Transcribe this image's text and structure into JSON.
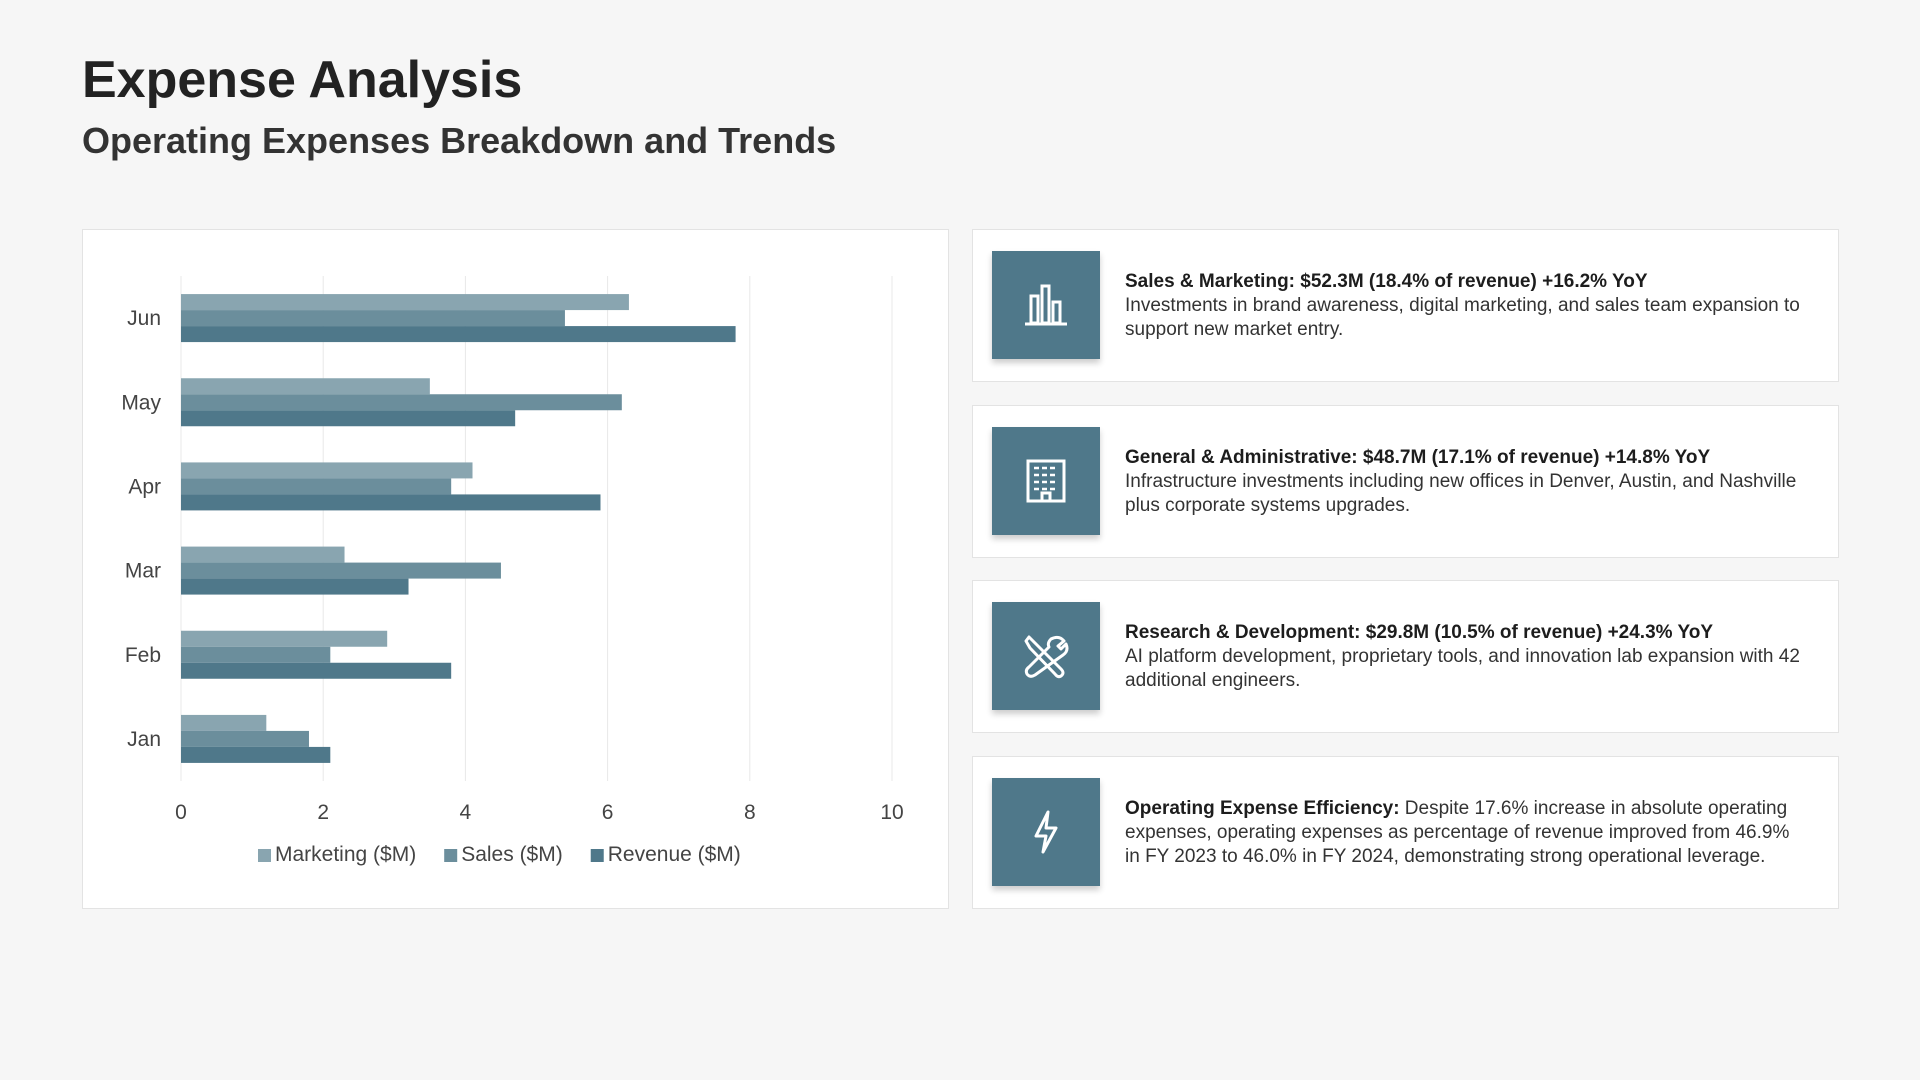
{
  "header": {
    "title": "Expense Analysis",
    "subtitle": "Operating Expenses Breakdown and Trends"
  },
  "chart_data": {
    "type": "bar",
    "orientation": "horizontal",
    "categories": [
      "Jan",
      "Feb",
      "Mar",
      "Apr",
      "May",
      "Jun"
    ],
    "series": [
      {
        "name": "Marketing ($M)",
        "color": "#89a5b0",
        "values": [
          1.2,
          2.9,
          2.3,
          4.1,
          3.5,
          6.3
        ]
      },
      {
        "name": "Sales ($M)",
        "color": "#6b8e9c",
        "values": [
          1.8,
          2.1,
          4.5,
          3.8,
          6.2,
          5.4
        ]
      },
      {
        "name": "Revenue ($M)",
        "color": "#4f788a",
        "values": [
          2.1,
          3.8,
          3.2,
          5.9,
          4.7,
          7.8
        ]
      }
    ],
    "xlim": [
      0,
      10
    ],
    "xticks": [
      "0",
      "2",
      "4",
      "6",
      "8",
      "10"
    ],
    "grid": true,
    "legend": "bottom"
  },
  "cards": [
    {
      "icon": "bar-chart-icon",
      "title": "Sales & Marketing: $52.3M (18.4% of revenue) +16.2% YoY",
      "body": "Investments in brand awareness, digital marketing, and sales team expansion to support new market entry."
    },
    {
      "icon": "building-icon",
      "title": "General & Administrative: $48.7M (17.1% of revenue) +14.8% YoY",
      "body": "Infrastructure investments including new offices in Denver, Austin, and Nashville plus corporate systems upgrades."
    },
    {
      "icon": "tools-icon",
      "title": "Research & Development: $29.8M (10.5% of revenue) +24.3% YoY",
      "body": "AI platform development, proprietary tools, and innovation lab expansion with 42 additional engineers."
    },
    {
      "icon": "lightning-icon",
      "title": "Operating Expense Efficiency:",
      "body": " Despite 17.6% increase in absolute operating expenses, operating expenses as percentage of revenue improved from 46.9% in FY 2023 to 46.0% in FY 2024, demonstrating strong operational leverage."
    }
  ]
}
